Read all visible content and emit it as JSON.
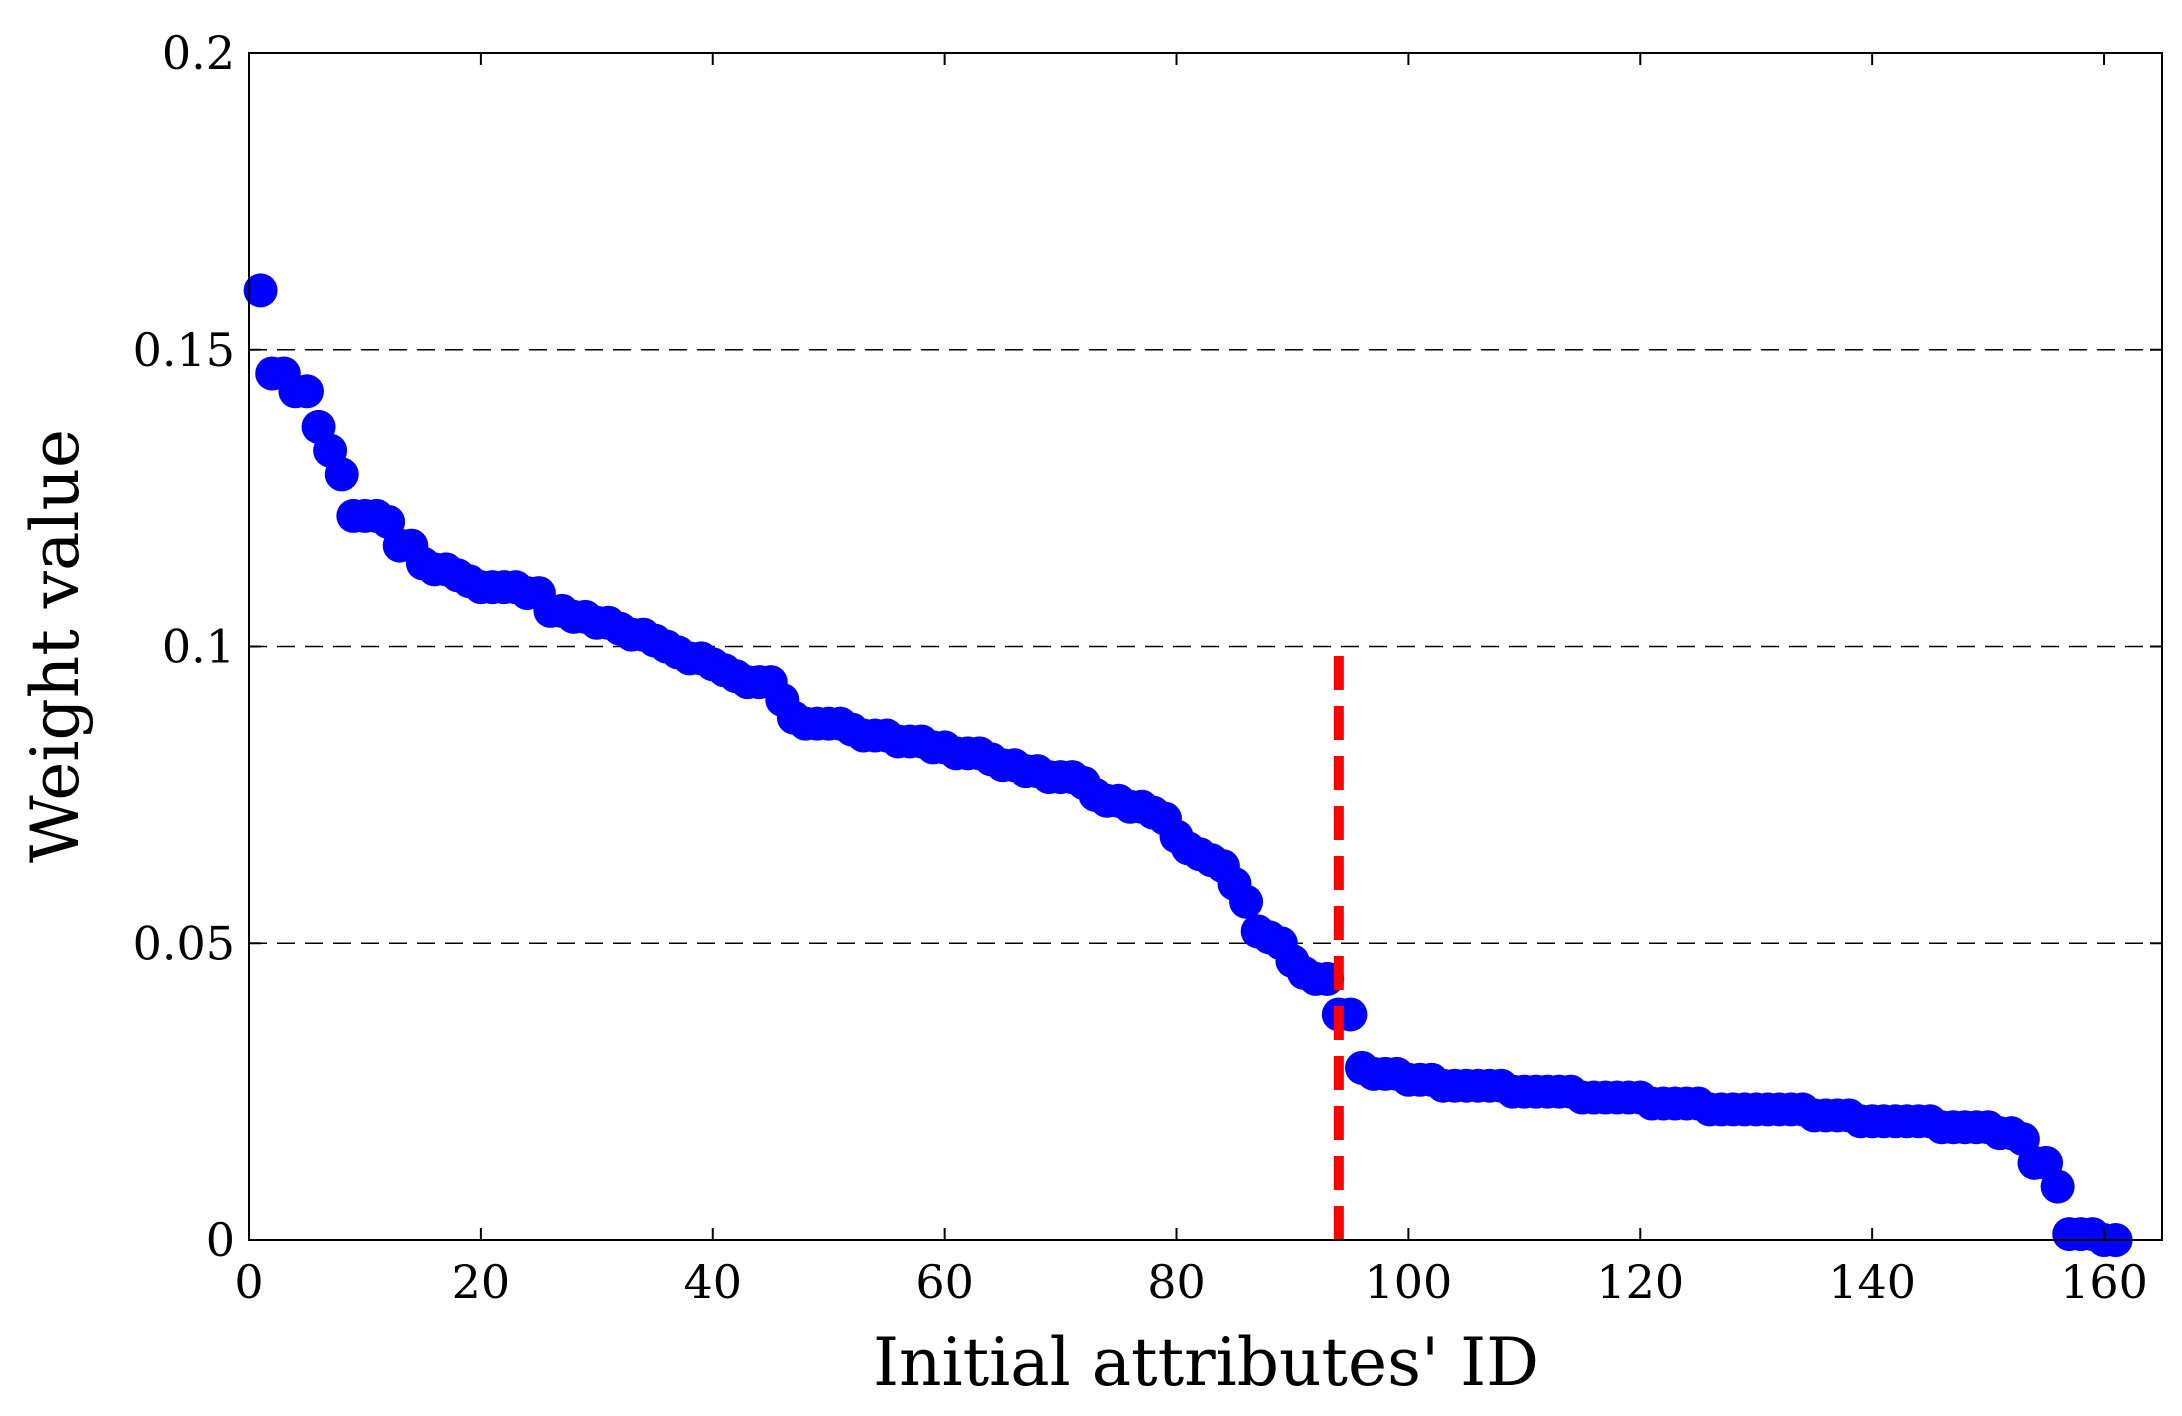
{
  "chart_data": {
    "type": "scatter",
    "title": "",
    "xlabel": "Initial attributes' ID",
    "ylabel": "Weight value",
    "xlim": [
      0,
      165
    ],
    "ylim": [
      0,
      0.2
    ],
    "xticks": [
      0,
      20,
      40,
      60,
      80,
      100,
      120,
      140,
      160
    ],
    "xtick_labels": [
      "0",
      "20",
      "40",
      "60",
      "80",
      "100",
      "120",
      "140",
      "160"
    ],
    "yticks": [
      0,
      0.05,
      0.1,
      0.15,
      0.2
    ],
    "ytick_labels": [
      "0",
      "0.05",
      "0.1",
      "0.15",
      "0.2"
    ],
    "grid": "dashed horizontal lines at 0.05, 0.1, 0.15",
    "marker_color": "#0000ff",
    "cutoff_line": {
      "x": 94,
      "y_from": 0,
      "y_to": 0.1,
      "color": "#ff0000",
      "style": "dashed"
    },
    "series": [
      {
        "name": "weights",
        "values": [
          0.16,
          0.146,
          0.146,
          0.143,
          0.143,
          0.137,
          0.133,
          0.129,
          0.122,
          0.122,
          0.122,
          0.121,
          0.117,
          0.117,
          0.114,
          0.113,
          0.113,
          0.112,
          0.111,
          0.11,
          0.11,
          0.11,
          0.11,
          0.109,
          0.109,
          0.106,
          0.106,
          0.105,
          0.105,
          0.104,
          0.104,
          0.103,
          0.102,
          0.102,
          0.101,
          0.1,
          0.099,
          0.098,
          0.098,
          0.097,
          0.096,
          0.095,
          0.094,
          0.094,
          0.094,
          0.091,
          0.088,
          0.087,
          0.087,
          0.087,
          0.087,
          0.086,
          0.085,
          0.085,
          0.085,
          0.084,
          0.084,
          0.084,
          0.083,
          0.083,
          0.082,
          0.082,
          0.082,
          0.081,
          0.08,
          0.08,
          0.079,
          0.079,
          0.078,
          0.078,
          0.078,
          0.077,
          0.075,
          0.074,
          0.074,
          0.073,
          0.073,
          0.072,
          0.071,
          0.068,
          0.066,
          0.065,
          0.064,
          0.063,
          0.06,
          0.057,
          0.052,
          0.051,
          0.05,
          0.047,
          0.045,
          0.044,
          0.044,
          0.038,
          0.038,
          0.029,
          0.028,
          0.028,
          0.028,
          0.027,
          0.027,
          0.027,
          0.026,
          0.026,
          0.026,
          0.026,
          0.026,
          0.026,
          0.025,
          0.025,
          0.025,
          0.025,
          0.025,
          0.025,
          0.024,
          0.024,
          0.024,
          0.024,
          0.024,
          0.024,
          0.023,
          0.023,
          0.023,
          0.023,
          0.023,
          0.022,
          0.022,
          0.022,
          0.022,
          0.022,
          0.022,
          0.022,
          0.022,
          0.022,
          0.021,
          0.021,
          0.021,
          0.021,
          0.02,
          0.02,
          0.02,
          0.02,
          0.02,
          0.02,
          0.02,
          0.019,
          0.019,
          0.019,
          0.019,
          0.019,
          0.018,
          0.018,
          0.017,
          0.013,
          0.013,
          0.009,
          0.001,
          0.001,
          0.001,
          0.0,
          0.0
        ]
      }
    ]
  }
}
